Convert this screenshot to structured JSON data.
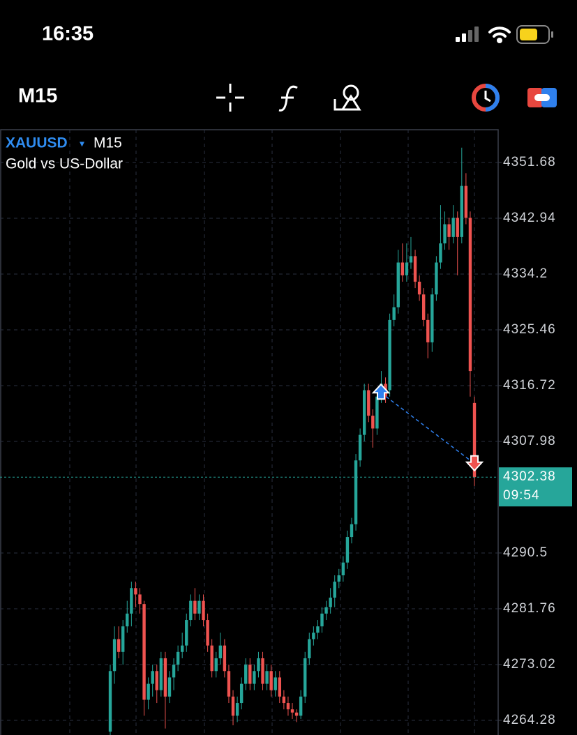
{
  "status_bar": {
    "time": "16:35"
  },
  "toolbar": {
    "timeframe": "M15"
  },
  "chart_data": {
    "type": "candlestick",
    "symbol": "XAUUSD",
    "symbol_menu": "▾",
    "timeframe": "M15",
    "description": "Gold vs US-Dollar",
    "up_color": "#26a69a",
    "down_color": "#ef5350",
    "grid": true,
    "ylim": [
      4261.98,
      4356.81
    ],
    "yticks": [
      4351.68,
      4342.94,
      4334.2,
      4325.46,
      4316.72,
      4307.98,
      4290.5,
      4281.76,
      4273.02,
      4264.28
    ],
    "current_price": 4302.38,
    "current_price_label": "4302.38",
    "bar_countdown": "09:54",
    "trade_open": 4315.6,
    "trade_close": 4304.5,
    "ohlc": [
      [
        4262.5,
        4273,
        4261,
        4272
      ],
      [
        4272,
        4279,
        4270,
        4277
      ],
      [
        4277,
        4279,
        4274,
        4275
      ],
      [
        4275,
        4280,
        4273,
        4279
      ],
      [
        4279,
        4283,
        4278,
        4281
      ],
      [
        4281,
        4286,
        4279,
        4285
      ],
      [
        4285,
        4286,
        4282,
        4284
      ],
      [
        4284,
        4285,
        4281,
        4282.5
      ],
      [
        4282.5,
        4283,
        4265,
        4267.5
      ],
      [
        4267.5,
        4271,
        4266,
        4270
      ],
      [
        4270,
        4273,
        4268,
        4272
      ],
      [
        4272,
        4273,
        4267,
        4269
      ],
      [
        4269,
        4275,
        4268,
        4274
      ],
      [
        4274,
        4275,
        4263,
        4268
      ],
      [
        4268,
        4272,
        4267,
        4271
      ],
      [
        4271,
        4274,
        4269,
        4273
      ],
      [
        4273,
        4276,
        4272,
        4275
      ],
      [
        4275,
        4278,
        4274,
        4276
      ],
      [
        4276,
        4281,
        4275,
        4280
      ],
      [
        4280,
        4284,
        4279,
        4283
      ],
      [
        4283,
        4285,
        4280,
        4281
      ],
      [
        4281,
        4284,
        4280,
        4283
      ],
      [
        4283,
        4284,
        4279,
        4280
      ],
      [
        4280,
        4281,
        4275,
        4276
      ],
      [
        4276,
        4277,
        4271,
        4272
      ],
      [
        4272,
        4275,
        4271,
        4274
      ],
      [
        4274,
        4278,
        4273,
        4276
      ],
      [
        4276,
        4277,
        4271,
        4272
      ],
      [
        4272,
        4273,
        4267,
        4268
      ],
      [
        4268,
        4269,
        4263.5,
        4265
      ],
      [
        4265,
        4268,
        4264,
        4267
      ],
      [
        4267,
        4271,
        4266,
        4270
      ],
      [
        4270,
        4274,
        4269,
        4273
      ],
      [
        4273,
        4274,
        4269,
        4270
      ],
      [
        4270,
        4273,
        4269,
        4272
      ],
      [
        4272,
        4275,
        4271,
        4274
      ],
      [
        4274,
        4275,
        4269,
        4270
      ],
      [
        4270,
        4273,
        4269,
        4272
      ],
      [
        4272,
        4273,
        4268,
        4269
      ],
      [
        4269,
        4272,
        4268,
        4271
      ],
      [
        4271,
        4272,
        4267,
        4268
      ],
      [
        4268,
        4269,
        4266,
        4267
      ],
      [
        4267,
        4268,
        4265,
        4266
      ],
      [
        4266,
        4267,
        4264.5,
        4265.5
      ],
      [
        4265.5,
        4266,
        4264,
        4265
      ],
      [
        4265,
        4269,
        4264.5,
        4268
      ],
      [
        4268,
        4275,
        4267,
        4274
      ],
      [
        4274,
        4278,
        4273,
        4277
      ],
      [
        4277,
        4279,
        4276,
        4278
      ],
      [
        4278,
        4280,
        4277,
        4279
      ],
      [
        4279,
        4282,
        4278,
        4281
      ],
      [
        4281,
        4283,
        4280,
        4282
      ],
      [
        4282,
        4285,
        4281,
        4283.5
      ],
      [
        4283.5,
        4287,
        4282,
        4286
      ],
      [
        4286,
        4288,
        4285,
        4287
      ],
      [
        4287,
        4290,
        4286,
        4289
      ],
      [
        4289,
        4294,
        4288,
        4293
      ],
      [
        4293,
        4296,
        4292,
        4295
      ],
      [
        4295,
        4306,
        4294,
        4305
      ],
      [
        4305,
        4310,
        4304,
        4309
      ],
      [
        4309,
        4317,
        4308,
        4316
      ],
      [
        4316,
        4317,
        4311,
        4312
      ],
      [
        4312,
        4313,
        4307,
        4310
      ],
      [
        4310,
        4316,
        4309,
        4315
      ],
      [
        4315,
        4319,
        4314,
        4317
      ],
      [
        4317,
        4318,
        4314,
        4315
      ],
      [
        4316,
        4328,
        4315,
        4327
      ],
      [
        4327,
        4331,
        4326,
        4329
      ],
      [
        4329,
        4338,
        4328,
        4336
      ],
      [
        4336,
        4339,
        4333,
        4334
      ],
      [
        4334,
        4339,
        4333,
        4336
      ],
      [
        4336,
        4340,
        4335,
        4337
      ],
      [
        4337,
        4338,
        4332,
        4333
      ],
      [
        4333,
        4334,
        4330,
        4331
      ],
      [
        4331,
        4332,
        4326,
        4327
      ],
      [
        4327,
        4328,
        4321,
        4323.5
      ],
      [
        4323.5,
        4332,
        4322,
        4331
      ],
      [
        4331,
        4337,
        4330,
        4336
      ],
      [
        4336,
        4345,
        4335,
        4339
      ],
      [
        4339,
        4344,
        4338,
        4342
      ],
      [
        4342,
        4343,
        4338,
        4340
      ],
      [
        4340,
        4345,
        4339,
        4343
      ],
      [
        4343,
        4344,
        4334,
        4340
      ],
      [
        4340,
        4354,
        4339,
        4348
      ],
      [
        4348,
        4350,
        4342,
        4343
      ],
      [
        4343,
        4344,
        4315,
        4319
      ],
      [
        4314,
        4315,
        4301,
        4302.38
      ]
    ]
  }
}
